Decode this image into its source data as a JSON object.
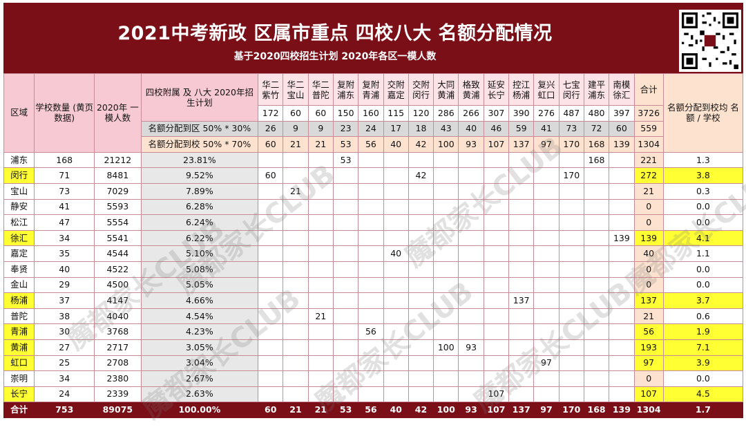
{
  "banner": {
    "title": "2021中考新政 区属市重点 四校八大 名额分配情况",
    "subtitle": "基于2020四校招生计划  2020年各区一模人数"
  },
  "headers": {
    "district": "区域",
    "school_count": "学校数量 (黄页数据)",
    "exam_count": "2020年 一模人数",
    "plan": "四校附属 及 八大 2020年招生计划",
    "to_district": "名额分配到区 50% * 30%",
    "to_school": "名额分配到校 50% * 70%",
    "total": "合计",
    "avg": "名额分配到校均 名额 / 学校"
  },
  "schools": [
    {
      "name": "华二 紫竹",
      "plan": "172",
      "district": "26",
      "school": "60"
    },
    {
      "name": "华二 宝山",
      "plan": "60",
      "district": "9",
      "school": "21"
    },
    {
      "name": "华二 普陀",
      "plan": "60",
      "district": "9",
      "school": "21"
    },
    {
      "name": "复附 浦东",
      "plan": "150",
      "district": "23",
      "school": "53"
    },
    {
      "name": "复附 青浦",
      "plan": "160",
      "district": "24",
      "school": "56"
    },
    {
      "name": "交附 嘉定",
      "plan": "115",
      "district": "17",
      "school": "40"
    },
    {
      "name": "交附 闵行",
      "plan": "120",
      "district": "18",
      "school": "42"
    },
    {
      "name": "大同 黄浦",
      "plan": "286",
      "district": "43",
      "school": "100"
    },
    {
      "name": "格致 黄浦",
      "plan": "266",
      "district": "40",
      "school": "93"
    },
    {
      "name": "延安 长宁",
      "plan": "307",
      "district": "46",
      "school": "107"
    },
    {
      "name": "控江 杨浦",
      "plan": "390",
      "district": "59",
      "school": "137"
    },
    {
      "name": "复兴 虹口",
      "plan": "276",
      "district": "41",
      "school": "97"
    },
    {
      "name": "七宝 闵行",
      "plan": "487",
      "district": "73",
      "school": "170"
    },
    {
      "name": "建平 浦东",
      "plan": "480",
      "district": "72",
      "school": "168"
    },
    {
      "name": "南模 徐汇",
      "plan": "397",
      "district": "60",
      "school": "139"
    }
  ],
  "totals_header": {
    "plan": "3726",
    "district": "559",
    "school": "1304"
  },
  "rows": [
    {
      "district": "浦东",
      "schools": "168",
      "exam": "21212",
      "pct": "23.81%",
      "alloc": [
        "",
        "",
        "",
        "53",
        "",
        "",
        "",
        "",
        "",
        "",
        "",
        "",
        "",
        "168",
        ""
      ],
      "total": "221",
      "avg": "1.3",
      "hl": false
    },
    {
      "district": "闵行",
      "schools": "71",
      "exam": "8481",
      "pct": "9.52%",
      "alloc": [
        "60",
        "",
        "",
        "",
        "",
        "",
        "42",
        "",
        "",
        "",
        "",
        "",
        "170",
        "",
        ""
      ],
      "total": "272",
      "avg": "3.8",
      "hl": true
    },
    {
      "district": "宝山",
      "schools": "73",
      "exam": "7029",
      "pct": "7.89%",
      "alloc": [
        "",
        "21",
        "",
        "",
        "",
        "",
        "",
        "",
        "",
        "",
        "",
        "",
        "",
        "",
        ""
      ],
      "total": "21",
      "avg": "0.3",
      "hl": false
    },
    {
      "district": "静安",
      "schools": "41",
      "exam": "5593",
      "pct": "6.28%",
      "alloc": [
        "",
        "",
        "",
        "",
        "",
        "",
        "",
        "",
        "",
        "",
        "",
        "",
        "",
        "",
        ""
      ],
      "total": "0",
      "avg": "0.0",
      "hl": false
    },
    {
      "district": "松江",
      "schools": "47",
      "exam": "5554",
      "pct": "6.24%",
      "alloc": [
        "",
        "",
        "",
        "",
        "",
        "",
        "",
        "",
        "",
        "",
        "",
        "",
        "",
        "",
        ""
      ],
      "total": "0",
      "avg": "0.0",
      "hl": false
    },
    {
      "district": "徐汇",
      "schools": "34",
      "exam": "5541",
      "pct": "6.22%",
      "alloc": [
        "",
        "",
        "",
        "",
        "",
        "",
        "",
        "",
        "",
        "",
        "",
        "",
        "",
        "",
        "139"
      ],
      "total": "139",
      "avg": "4.1",
      "hl": true
    },
    {
      "district": "嘉定",
      "schools": "35",
      "exam": "4544",
      "pct": "5.10%",
      "alloc": [
        "",
        "",
        "",
        "",
        "",
        "40",
        "",
        "",
        "",
        "",
        "",
        "",
        "",
        "",
        ""
      ],
      "total": "40",
      "avg": "1.1",
      "hl": false
    },
    {
      "district": "奉贤",
      "schools": "40",
      "exam": "4522",
      "pct": "5.08%",
      "alloc": [
        "",
        "",
        "",
        "",
        "",
        "",
        "",
        "",
        "",
        "",
        "",
        "",
        "",
        "",
        ""
      ],
      "total": "0",
      "avg": "0.0",
      "hl": false
    },
    {
      "district": "金山",
      "schools": "29",
      "exam": "4500",
      "pct": "5.05%",
      "alloc": [
        "",
        "",
        "",
        "",
        "",
        "",
        "",
        "",
        "",
        "",
        "",
        "",
        "",
        "",
        ""
      ],
      "total": "0",
      "avg": "0.0",
      "hl": false
    },
    {
      "district": "杨浦",
      "schools": "37",
      "exam": "4147",
      "pct": "4.66%",
      "alloc": [
        "",
        "",
        "",
        "",
        "",
        "",
        "",
        "",
        "",
        "",
        "137",
        "",
        "",
        "",
        ""
      ],
      "total": "137",
      "avg": "3.7",
      "hl": true
    },
    {
      "district": "普陀",
      "schools": "38",
      "exam": "4040",
      "pct": "4.54%",
      "alloc": [
        "",
        "",
        "21",
        "",
        "",
        "",
        "",
        "",
        "",
        "",
        "",
        "",
        "",
        "",
        ""
      ],
      "total": "21",
      "avg": "0.6",
      "hl": false
    },
    {
      "district": "青浦",
      "schools": "30",
      "exam": "3768",
      "pct": "4.23%",
      "alloc": [
        "",
        "",
        "",
        "",
        "56",
        "",
        "",
        "",
        "",
        "",
        "",
        "",
        "",
        "",
        ""
      ],
      "total": "56",
      "avg": "1.9",
      "hl": true
    },
    {
      "district": "黄浦",
      "schools": "27",
      "exam": "2717",
      "pct": "3.05%",
      "alloc": [
        "",
        "",
        "",
        "",
        "",
        "",
        "",
        "100",
        "93",
        "",
        "",
        "",
        "",
        "",
        ""
      ],
      "total": "193",
      "avg": "7.1",
      "hl": true
    },
    {
      "district": "虹口",
      "schools": "25",
      "exam": "2708",
      "pct": "3.04%",
      "alloc": [
        "",
        "",
        "",
        "",
        "",
        "",
        "",
        "",
        "",
        "",
        "",
        "97",
        "",
        "",
        ""
      ],
      "total": "97",
      "avg": "3.9",
      "hl": true
    },
    {
      "district": "崇明",
      "schools": "34",
      "exam": "2380",
      "pct": "2.67%",
      "alloc": [
        "",
        "",
        "",
        "",
        "",
        "",
        "",
        "",
        "",
        "",
        "",
        "",
        "",
        "",
        ""
      ],
      "total": "0",
      "avg": "0.0",
      "hl": false
    },
    {
      "district": "长宁",
      "schools": "24",
      "exam": "2339",
      "pct": "2.63%",
      "alloc": [
        "",
        "",
        "",
        "",
        "",
        "",
        "",
        "",
        "",
        "107",
        "",
        "",
        "",
        "",
        ""
      ],
      "total": "107",
      "avg": "4.5",
      "hl": true
    }
  ],
  "footer": {
    "label": "合计",
    "schools": "753",
    "exam": "89075",
    "pct": "100.00%",
    "alloc": [
      "60",
      "21",
      "21",
      "53",
      "56",
      "40",
      "42",
      "100",
      "93",
      "107",
      "137",
      "97",
      "170",
      "168",
      "139"
    ],
    "total": "1304",
    "avg": "1.7"
  },
  "watermark": "魔都家长CLUB",
  "colors": {
    "banner": "#7a0f17",
    "highlight": "#ffff33",
    "header_pink": "#fbe3e8",
    "grid": "#c98a98"
  }
}
